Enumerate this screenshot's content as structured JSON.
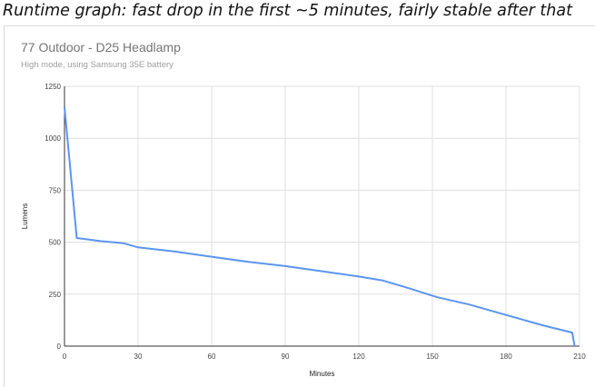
{
  "caption": "Runtime graph: fast drop in the first ~5 minutes, fairly stable after that",
  "colors": {
    "line": "#5b95f0",
    "grid": "#e0e0e0",
    "axis": "#333333"
  },
  "chart_data": {
    "type": "line",
    "title": "77 Outdoor - D25 Headlamp",
    "subtitle": "High mode, using Samsung 35E battery",
    "xlabel": "Minutes",
    "ylabel": "Lumens",
    "xlim": [
      0,
      210
    ],
    "ylim": [
      0,
      1250
    ],
    "xticks": [
      0,
      30,
      60,
      90,
      120,
      150,
      180,
      210
    ],
    "yticks": [
      0,
      250,
      500,
      750,
      1000,
      1250
    ],
    "grid": true,
    "legend": "none",
    "series": [
      {
        "x": [
          0,
          5,
          15,
          24,
          30,
          45,
          60,
          75,
          90,
          105,
          120,
          130,
          140,
          152,
          165,
          180,
          195,
          207,
          208
        ],
        "y": [
          1150,
          520,
          505,
          495,
          475,
          455,
          430,
          405,
          385,
          360,
          335,
          315,
          280,
          235,
          200,
          150,
          100,
          65,
          0
        ]
      }
    ]
  }
}
